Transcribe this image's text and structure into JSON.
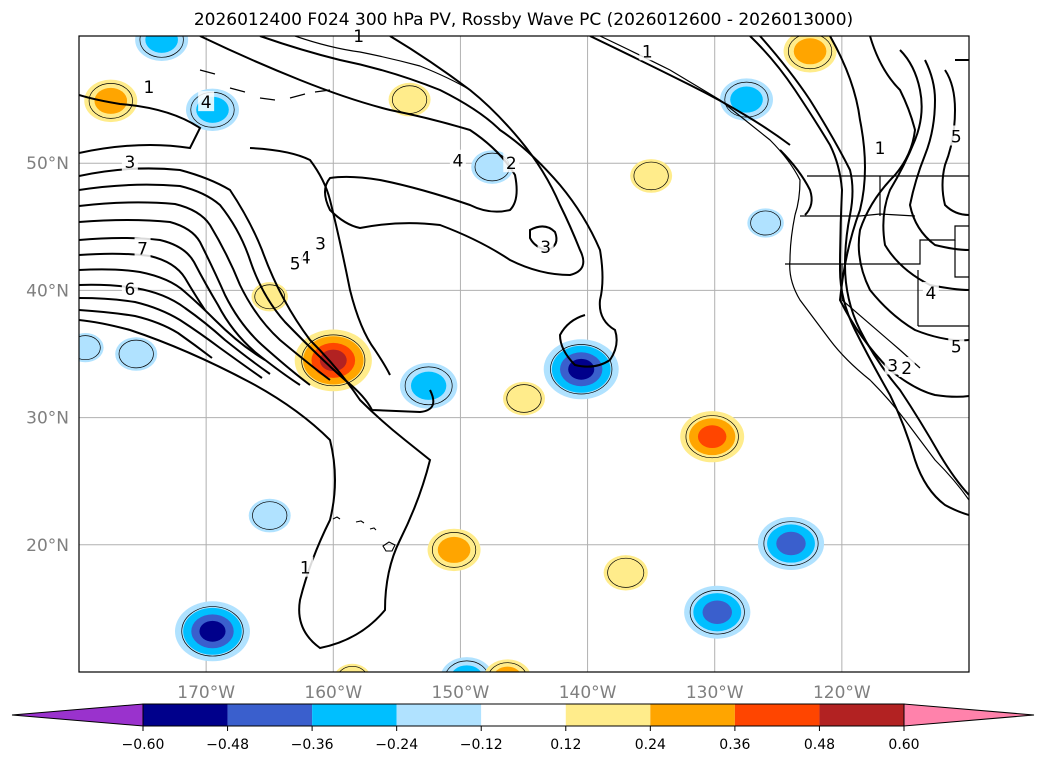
{
  "title": "2026012400 F024 300 hPa PV, Rossby Wave PC (2026012600 - 2026013000)",
  "map": {
    "lat_labels": [
      "50°N",
      "40°N",
      "30°N",
      "20°N"
    ],
    "lon_labels": [
      "170°W",
      "160°W",
      "150°W",
      "140°W",
      "130°W",
      "120°W"
    ],
    "lat_range": [
      10,
      60
    ],
    "lon_range": [
      -180,
      -110
    ],
    "contour_labels": [
      {
        "text": "1",
        "lon": -158,
        "lat": 60
      },
      {
        "text": "1",
        "lon": -174.5,
        "lat": 56
      },
      {
        "text": "4",
        "lon": -170,
        "lat": 54.8
      },
      {
        "text": "3",
        "lon": -176,
        "lat": 50.1
      },
      {
        "text": "4",
        "lon": -150.2,
        "lat": 50.2
      },
      {
        "text": "2",
        "lon": -146,
        "lat": 50
      },
      {
        "text": "1",
        "lon": -135.3,
        "lat": 58.8
      },
      {
        "text": "1",
        "lon": -117,
        "lat": 51.2
      },
      {
        "text": "5",
        "lon": -111,
        "lat": 52.1
      },
      {
        "text": "7",
        "lon": -175,
        "lat": 43.3
      },
      {
        "text": "6",
        "lon": -176,
        "lat": 40.1
      },
      {
        "text": "3",
        "lon": -161,
        "lat": 43.7
      },
      {
        "text": "4",
        "lon": -162.2,
        "lat": 42.6
      },
      {
        "text": "5",
        "lon": -163,
        "lat": 42.1
      },
      {
        "text": "3",
        "lon": -143.3,
        "lat": 43.4
      },
      {
        "text": "4",
        "lon": -113,
        "lat": 39.8
      },
      {
        "text": "5",
        "lon": -111,
        "lat": 35.6
      },
      {
        "text": "2",
        "lon": -114.9,
        "lat": 33.9
      },
      {
        "text": "3",
        "lon": -116,
        "lat": 34.1
      },
      {
        "text": "1",
        "lon": -162.2,
        "lat": 18.2
      }
    ],
    "anomalies": [
      {
        "lon": -160,
        "lat": 34.5,
        "value": 0.52
      },
      {
        "lon": -140.5,
        "lat": 33.8,
        "value": -0.5
      },
      {
        "lon": -130.2,
        "lat": 28.5,
        "value": 0.4
      },
      {
        "lon": -152.5,
        "lat": 32.5,
        "value": -0.34
      },
      {
        "lon": -169.5,
        "lat": 13.2,
        "value": -0.5
      },
      {
        "lon": -129.8,
        "lat": 14.7,
        "value": -0.42
      },
      {
        "lon": -124,
        "lat": 20.1,
        "value": -0.42
      },
      {
        "lon": -127.5,
        "lat": 55,
        "value": -0.3
      },
      {
        "lon": -169.5,
        "lat": 54.2,
        "value": -0.3
      },
      {
        "lon": -177.5,
        "lat": 54.9,
        "value": 0.3
      },
      {
        "lon": -122.5,
        "lat": 58.8,
        "value": 0.3
      },
      {
        "lon": -150.5,
        "lat": 19.6,
        "value": 0.3
      },
      {
        "lon": -173.5,
        "lat": 59.7,
        "value": -0.3
      },
      {
        "lon": -149.5,
        "lat": 9.5,
        "value": -0.3
      },
      {
        "lon": -154,
        "lat": 55,
        "value": 0.2
      },
      {
        "lon": -147.5,
        "lat": 49.7,
        "value": -0.2
      },
      {
        "lon": -146.3,
        "lat": 9.5,
        "value": 0.25
      },
      {
        "lon": -145,
        "lat": 31.5,
        "value": 0.2
      },
      {
        "lon": -137,
        "lat": 17.8,
        "value": 0.22
      },
      {
        "lon": -135,
        "lat": 49,
        "value": 0.2
      },
      {
        "lon": -165,
        "lat": 22.3,
        "value": -0.2
      },
      {
        "lon": -175.5,
        "lat": 35,
        "value": -0.2
      },
      {
        "lon": -165,
        "lat": 39.5,
        "value": 0.15
      },
      {
        "lon": -158.5,
        "lat": 9.5,
        "value": 0.15
      },
      {
        "lon": -179.5,
        "lat": 35.5,
        "value": -0.15
      },
      {
        "lon": -126,
        "lat": 45.3,
        "value": -0.15
      }
    ]
  },
  "colorbar": {
    "ticks": [
      "−0.60",
      "−0.48",
      "−0.36",
      "−0.24",
      "−0.12",
      "0.12",
      "0.24",
      "0.36",
      "0.48",
      "0.60"
    ],
    "colors": [
      "#9a32cd",
      "#00008b",
      "#3a5fcd",
      "#00bfff",
      "#b0e2ff",
      "#ffffff",
      "#ffec8b",
      "#ffa500",
      "#ff4500",
      "#b22222",
      "#ff82ab"
    ]
  }
}
